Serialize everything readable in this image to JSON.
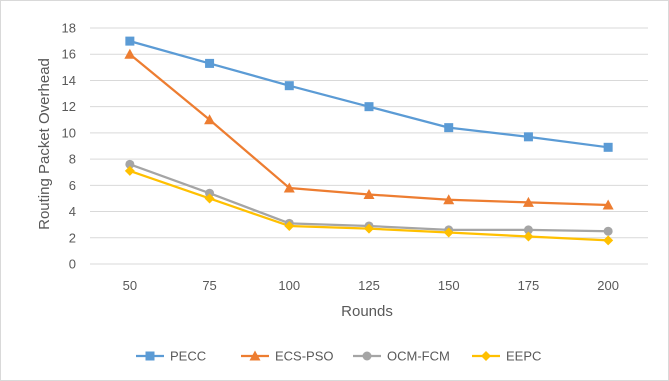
{
  "chart_data": {
    "type": "line",
    "title": "",
    "xlabel": "Rounds",
    "ylabel": "Routing Packet Overhead",
    "categories": [
      "50",
      "75",
      "100",
      "125",
      "150",
      "175",
      "200"
    ],
    "ylim": [
      0,
      18
    ],
    "yticks": [
      0,
      2,
      4,
      6,
      8,
      10,
      12,
      14,
      16,
      18
    ],
    "grid": "horizontal",
    "legend_position": "bottom",
    "series": [
      {
        "name": "PECC",
        "color": "#5b9bd5",
        "marker": "square",
        "values": [
          17.0,
          15.3,
          13.6,
          12.0,
          10.4,
          9.7,
          8.9
        ]
      },
      {
        "name": "ECS-PSO",
        "color": "#ed7d31",
        "marker": "triangle",
        "values": [
          16.0,
          11.0,
          5.8,
          5.3,
          4.9,
          4.7,
          4.5
        ]
      },
      {
        "name": "OCM-FCM",
        "color": "#a5a5a5",
        "marker": "circle",
        "values": [
          7.6,
          5.4,
          3.1,
          2.9,
          2.6,
          2.6,
          2.5
        ]
      },
      {
        "name": "EEPC",
        "color": "#ffc000",
        "marker": "diamond",
        "values": [
          7.1,
          5.0,
          2.9,
          2.7,
          2.4,
          2.1,
          1.8
        ]
      }
    ]
  }
}
